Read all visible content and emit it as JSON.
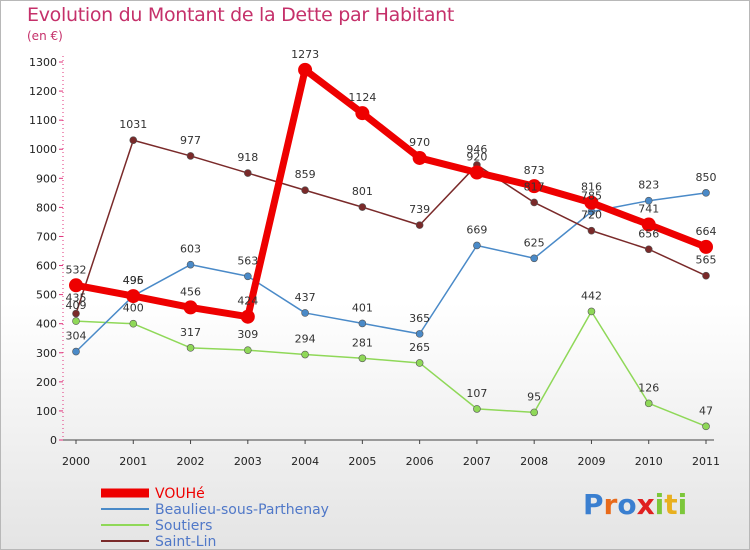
{
  "title": "Evolution du Montant de la Dette par Habitant",
  "subtitle": "(en €)",
  "logo": [
    "P",
    "r",
    "o",
    "x",
    "i",
    "t",
    "i"
  ],
  "chart_data": {
    "type": "line",
    "x": [
      "2000",
      "2001",
      "2002",
      "2003",
      "2004",
      "2005",
      "2006",
      "2007",
      "2008",
      "2009",
      "2010",
      "2011"
    ],
    "ylim": [
      0,
      1300
    ],
    "yticks": [
      0,
      100,
      200,
      300,
      400,
      500,
      600,
      700,
      800,
      900,
      1000,
      1100,
      1200,
      1300
    ],
    "grid": false,
    "legend_position": "bottom-left",
    "series": [
      {
        "name": "VOUHé",
        "color": "#ee0000",
        "values": [
          532,
          495,
          456,
          424,
          1273,
          1124,
          970,
          920,
          873,
          816,
          741,
          664
        ]
      },
      {
        "name": "Beaulieu-sous-Parthenay",
        "color": "#4a8ac8",
        "values": [
          304,
          496,
          603,
          563,
          437,
          401,
          365,
          669,
          625,
          785,
          823,
          850
        ]
      },
      {
        "name": "Soutiers",
        "color": "#8fd858",
        "values": [
          409,
          400,
          317,
          309,
          294,
          281,
          265,
          107,
          95,
          442,
          126,
          47
        ]
      },
      {
        "name": "Saint-Lin",
        "color": "#7a2a2a",
        "values": [
          435,
          1031,
          977,
          918,
          859,
          801,
          739,
          946,
          817,
          720,
          656,
          565
        ]
      }
    ]
  }
}
